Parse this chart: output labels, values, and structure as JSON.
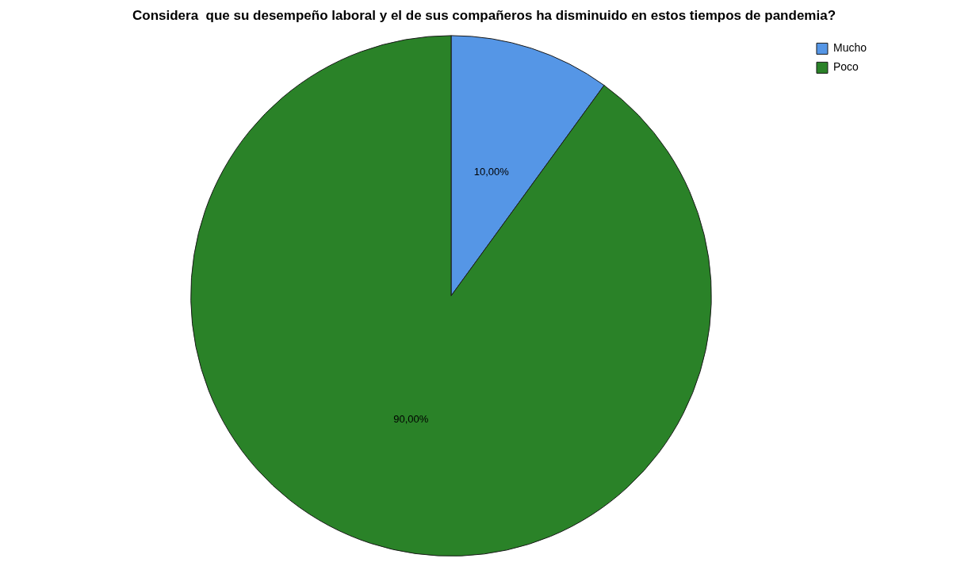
{
  "chart_data": {
    "type": "pie",
    "title": "Considera  que su desempeño laboral y el de sus compañeros ha disminuido en estos tiempos de pandemia?",
    "categories": [
      "Mucho",
      "Poco"
    ],
    "values": [
      10,
      90
    ],
    "colors": [
      "#5596e6",
      "#2a8228"
    ],
    "value_labels": [
      "10,00%",
      "90,00%"
    ],
    "legend": "top right"
  }
}
